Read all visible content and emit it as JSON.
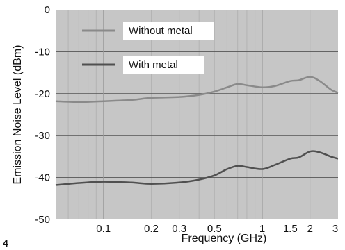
{
  "chart_data": {
    "type": "line",
    "title": "",
    "xlabel": "Frequency (GHz)",
    "ylabel": "Emission Noise Level (dBm)",
    "xscale": "log",
    "xlim": [
      0.05,
      3
    ],
    "ylim": [
      -50,
      0
    ],
    "x_ticks": [
      0.1,
      0.2,
      0.3,
      0.5,
      1,
      1.5,
      2,
      3
    ],
    "x_tick_labels": [
      "0.1",
      "0.2",
      "0.3",
      "0.5",
      "1",
      "1.5",
      "2",
      "3"
    ],
    "y_ticks": [
      0,
      -10,
      -20,
      -30,
      -40,
      -50
    ],
    "y_tick_labels": [
      "0",
      "-10",
      "-20",
      "-30",
      "-40",
      "-50"
    ],
    "grid": true,
    "legend_position": "top-left",
    "colors": {
      "plot_bg": "#c6c6c6",
      "without_metal": "#8a8a8a",
      "with_metal": "#505050",
      "grid_major": "#555555",
      "grid_minor": "#b3b3b3"
    },
    "corner_label": "4",
    "series": [
      {
        "name": "Without metal",
        "x": [
          0.05,
          0.07,
          0.1,
          0.15,
          0.2,
          0.3,
          0.4,
          0.5,
          0.6,
          0.7,
          0.8,
          1.0,
          1.2,
          1.5,
          1.7,
          2.0,
          2.3,
          2.7,
          3.0
        ],
        "y": [
          -21.8,
          -22.0,
          -21.8,
          -21.5,
          -21.0,
          -20.8,
          -20.3,
          -19.5,
          -18.5,
          -17.7,
          -18.0,
          -18.5,
          -18.2,
          -17.0,
          -16.8,
          -16.0,
          -17.0,
          -19.0,
          -19.8
        ]
      },
      {
        "name": "With metal",
        "x": [
          0.05,
          0.07,
          0.1,
          0.15,
          0.2,
          0.3,
          0.4,
          0.5,
          0.6,
          0.7,
          0.8,
          1.0,
          1.2,
          1.5,
          1.7,
          2.0,
          2.3,
          2.7,
          3.0
        ],
        "y": [
          -41.8,
          -41.3,
          -41.0,
          -41.2,
          -41.5,
          -41.2,
          -40.5,
          -39.5,
          -38.0,
          -37.2,
          -37.5,
          -38.0,
          -37.0,
          -35.5,
          -35.2,
          -33.8,
          -34.0,
          -35.0,
          -35.5
        ]
      }
    ]
  }
}
